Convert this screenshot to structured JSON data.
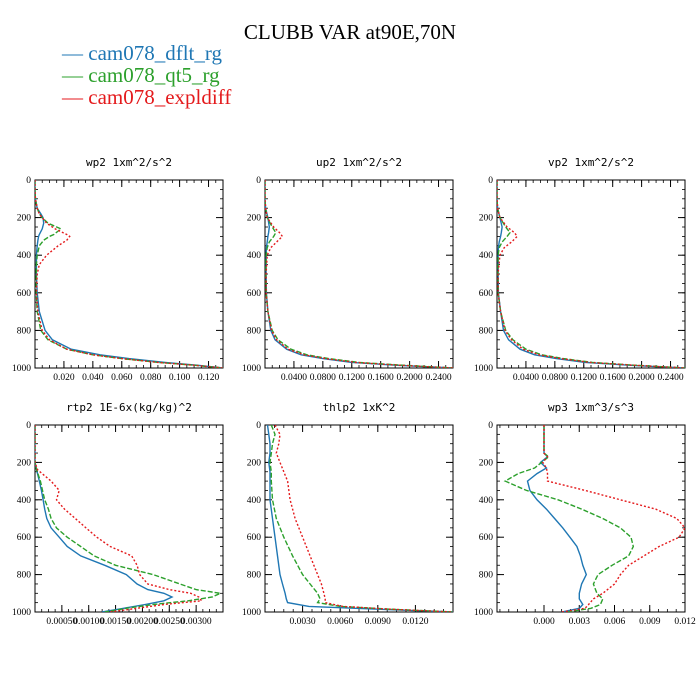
{
  "title": "CLUBB VAR at90E,70N",
  "legend": [
    {
      "name": "cam078_dflt_rg",
      "color": "#1f77b4"
    },
    {
      "name": "cam078_qt5_rg",
      "color": "#2ca02c"
    },
    {
      "name": "cam078_expldiff",
      "color": "#e41a1c"
    }
  ],
  "chart_data": [
    {
      "type": "line",
      "title": "wp2   1xm^2/s^2",
      "xlim": [
        0,
        0.13
      ],
      "ylim": [
        1000,
        0
      ],
      "xticks": [
        0.02,
        0.04,
        0.06,
        0.08,
        0.1,
        0.12
      ],
      "xticklabels": [
        "0.020",
        "0.040",
        "0.060",
        "0.080",
        "0.100",
        "0.120"
      ],
      "yticks": [
        0,
        200,
        400,
        600,
        800,
        1000
      ],
      "y": [
        0,
        50,
        100,
        150,
        180,
        200,
        230,
        260,
        290,
        300,
        320,
        350,
        400,
        450,
        500,
        600,
        700,
        800,
        850,
        900,
        930,
        950,
        970,
        985,
        1000
      ],
      "series": [
        {
          "name": "cam078_dflt_rg",
          "values": [
            0,
            0,
            0.0003,
            0.0015,
            0.004,
            0.0055,
            0.006,
            0.005,
            0.003,
            0.0025,
            0.002,
            0.0015,
            0.001,
            0.001,
            0.001,
            0.0015,
            0.003,
            0.007,
            0.012,
            0.025,
            0.045,
            0.065,
            0.09,
            0.112,
            0.13
          ]
        },
        {
          "name": "cam078_qt5_rg",
          "values": [
            0,
            0,
            0.0003,
            0.0015,
            0.003,
            0.005,
            0.009,
            0.018,
            0.013,
            0.01,
            0.006,
            0.003,
            0.0015,
            0.001,
            0.0008,
            0.0008,
            0.0015,
            0.004,
            0.009,
            0.022,
            0.04,
            0.06,
            0.085,
            0.11,
            0.13
          ]
        },
        {
          "name": "cam078_expldiff",
          "values": [
            0,
            0,
            0.0003,
            0.0015,
            0.003,
            0.005,
            0.008,
            0.014,
            0.022,
            0.024,
            0.022,
            0.016,
            0.008,
            0.003,
            0.0015,
            0.001,
            0.002,
            0.005,
            0.01,
            0.022,
            0.04,
            0.06,
            0.085,
            0.11,
            0.13
          ]
        }
      ]
    },
    {
      "type": "line",
      "title": "up2   1xm^2/s^2",
      "xlim": [
        0,
        0.26
      ],
      "ylim": [
        1000,
        0
      ],
      "xticks": [
        0.04,
        0.08,
        0.12,
        0.16,
        0.2,
        0.24
      ],
      "xticklabels": [
        "0.0400",
        "0.0800",
        "0.1200",
        "0.1600",
        "0.2000",
        "0.2400"
      ],
      "yticks": [
        0,
        200,
        400,
        600,
        800,
        1000
      ],
      "y": [
        0,
        100,
        150,
        200,
        250,
        280,
        300,
        330,
        360,
        400,
        500,
        600,
        700,
        800,
        850,
        900,
        930,
        950,
        970,
        985,
        1000
      ],
      "series": [
        {
          "name": "cam078_dflt_rg",
          "values": [
            0,
            0,
            0.0008,
            0.004,
            0.006,
            0.005,
            0.004,
            0.003,
            0.002,
            0.0015,
            0.0015,
            0.002,
            0.004,
            0.008,
            0.014,
            0.03,
            0.05,
            0.08,
            0.12,
            0.18,
            0.26
          ]
        },
        {
          "name": "cam078_qt5_rg",
          "values": [
            0,
            0,
            0.0008,
            0.003,
            0.01,
            0.015,
            0.012,
            0.006,
            0.003,
            0.0015,
            0.0012,
            0.0015,
            0.004,
            0.01,
            0.018,
            0.036,
            0.058,
            0.088,
            0.13,
            0.19,
            0.26
          ]
        },
        {
          "name": "cam078_expldiff",
          "values": [
            0,
            0,
            0.0008,
            0.003,
            0.012,
            0.02,
            0.024,
            0.016,
            0.008,
            0.003,
            0.0015,
            0.0015,
            0.004,
            0.009,
            0.016,
            0.032,
            0.054,
            0.084,
            0.125,
            0.185,
            0.26
          ]
        }
      ]
    },
    {
      "type": "line",
      "title": "vp2   1xm^2/s^2",
      "xlim": [
        0,
        0.26
      ],
      "ylim": [
        1000,
        0
      ],
      "xticks": [
        0.04,
        0.08,
        0.12,
        0.16,
        0.2,
        0.24
      ],
      "xticklabels": [
        "0.0400",
        "0.0800",
        "0.1200",
        "0.1600",
        "0.2000",
        "0.2400"
      ],
      "yticks": [
        0,
        200,
        400,
        600,
        800,
        1000
      ],
      "y": [
        0,
        100,
        150,
        200,
        250,
        280,
        300,
        330,
        360,
        400,
        500,
        600,
        700,
        800,
        850,
        900,
        930,
        950,
        970,
        985,
        1000
      ],
      "series": [
        {
          "name": "cam078_dflt_rg",
          "values": [
            0,
            0,
            0.0008,
            0.004,
            0.007,
            0.006,
            0.005,
            0.003,
            0.002,
            0.0015,
            0.0015,
            0.002,
            0.005,
            0.009,
            0.016,
            0.032,
            0.052,
            0.082,
            0.122,
            0.182,
            0.26
          ]
        },
        {
          "name": "cam078_qt5_rg",
          "values": [
            0,
            0,
            0.0008,
            0.004,
            0.012,
            0.018,
            0.014,
            0.007,
            0.003,
            0.0015,
            0.0012,
            0.0015,
            0.005,
            0.012,
            0.022,
            0.04,
            0.062,
            0.092,
            0.132,
            0.19,
            0.26
          ]
        },
        {
          "name": "cam078_expldiff",
          "values": [
            0,
            0,
            0.0008,
            0.004,
            0.014,
            0.024,
            0.028,
            0.02,
            0.01,
            0.004,
            0.0015,
            0.0015,
            0.005,
            0.011,
            0.02,
            0.036,
            0.058,
            0.088,
            0.128,
            0.188,
            0.26
          ]
        }
      ]
    },
    {
      "type": "line",
      "title": "rtp2   1E-6x(kg/kg)^2",
      "xlim": [
        0,
        0.0035
      ],
      "ylim": [
        1000,
        0
      ],
      "xticks": [
        0.0005,
        0.001,
        0.0015,
        0.002,
        0.0025,
        0.003
      ],
      "xticklabels": [
        "0.00050",
        "0.00100",
        "0.00150",
        "0.00200",
        "0.00250",
        "0.00300"
      ],
      "yticks": [
        0,
        200,
        400,
        600,
        800,
        1000
      ],
      "y": [
        0,
        100,
        200,
        240,
        300,
        350,
        400,
        450,
        500,
        550,
        600,
        650,
        700,
        750,
        800,
        850,
        880,
        900,
        920,
        940,
        960,
        980,
        1000
      ],
      "series": [
        {
          "name": "cam078_dflt_rg",
          "values": [
            0,
            0,
            0,
            3e-05,
            8e-05,
            0.00012,
            0.00015,
            0.00018,
            0.00022,
            0.0003,
            0.00045,
            0.0006,
            0.00085,
            0.0013,
            0.0017,
            0.0019,
            0.0021,
            0.0024,
            0.00255,
            0.0024,
            0.00205,
            0.00165,
            0.00125
          ]
        },
        {
          "name": "cam078_qt5_rg",
          "values": [
            0,
            0,
            0,
            3e-05,
            0.0001,
            0.00014,
            0.00018,
            0.00025,
            0.0003,
            0.0004,
            0.0006,
            0.00085,
            0.0011,
            0.0015,
            0.0022,
            0.0027,
            0.003,
            0.00345,
            0.0033,
            0.00285,
            0.0022,
            0.0017,
            0.0013
          ]
        },
        {
          "name": "cam078_expldiff",
          "values": [
            0,
            0,
            0,
            5e-05,
            0.0003,
            0.00045,
            0.0004,
            0.00055,
            0.00075,
            0.00095,
            0.00115,
            0.0014,
            0.0018,
            0.0019,
            0.00195,
            0.0021,
            0.0025,
            0.0029,
            0.00305,
            0.0031,
            0.0024,
            0.0019,
            0.0014
          ]
        }
      ]
    },
    {
      "type": "line",
      "title": "thlp2   1xK^2",
      "xlim": [
        0,
        0.015
      ],
      "ylim": [
        1000,
        0
      ],
      "xticks": [
        0.003,
        0.006,
        0.009,
        0.012
      ],
      "xticklabels": [
        "0.0030",
        "0.0060",
        "0.0090",
        "0.0120"
      ],
      "yticks": [
        0,
        200,
        400,
        600,
        800,
        1000
      ],
      "y": [
        0,
        50,
        100,
        150,
        200,
        250,
        300,
        400,
        500,
        600,
        700,
        800,
        850,
        900,
        930,
        950,
        970,
        985,
        1000
      ],
      "series": [
        {
          "name": "cam078_dflt_rg",
          "values": [
            0.0002,
            0.0003,
            0.0004,
            0.0004,
            0.0003,
            0.0004,
            0.0004,
            0.0004,
            0.0006,
            0.0008,
            0.001,
            0.0012,
            0.0014,
            0.0016,
            0.0017,
            0.0018,
            0.0035,
            0.009,
            0.015
          ]
        },
        {
          "name": "cam078_qt5_rg",
          "values": [
            0.0005,
            0.0008,
            0.0006,
            0.0005,
            0.0004,
            0.0005,
            0.0005,
            0.0006,
            0.0009,
            0.0015,
            0.0022,
            0.003,
            0.0036,
            0.0042,
            0.0044,
            0.0042,
            0.006,
            0.01,
            0.015
          ]
        },
        {
          "name": "cam078_expldiff",
          "values": [
            0.0008,
            0.0012,
            0.0011,
            0.0009,
            0.0012,
            0.0015,
            0.0018,
            0.002,
            0.0024,
            0.003,
            0.0036,
            0.0042,
            0.0045,
            0.0047,
            0.0048,
            0.0048,
            0.0062,
            0.01,
            0.015
          ]
        }
      ]
    },
    {
      "type": "line",
      "title": "wp3   1xm^3/s^3",
      "xlim": [
        -0.004,
        0.012
      ],
      "ylim": [
        1000,
        0
      ],
      "xticks": [
        0,
        0.003,
        0.006,
        0.009,
        0.012
      ],
      "xticklabels": [
        "0.000",
        "0.003",
        "0.006",
        "0.009",
        "0.012"
      ],
      "yticks": [
        0,
        200,
        400,
        600,
        800,
        1000
      ],
      "y": [
        0,
        150,
        170,
        200,
        230,
        260,
        300,
        350,
        400,
        450,
        500,
        550,
        600,
        650,
        700,
        750,
        800,
        850,
        900,
        930,
        960,
        980,
        1000
      ],
      "series": [
        {
          "name": "cam078_dflt_rg",
          "values": [
            0,
            0,
            0.0003,
            -0.0003,
            0.0002,
            -0.0006,
            -0.0014,
            -0.0012,
            -0.0006,
            0.0002,
            0.0009,
            0.0016,
            0.0022,
            0.0028,
            0.0031,
            0.0033,
            0.0036,
            0.0032,
            0.003,
            0.003,
            0.0033,
            0.003,
            0.0015
          ]
        },
        {
          "name": "cam078_qt5_rg",
          "values": [
            0,
            0,
            0.0004,
            -0.0002,
            -0.0008,
            -0.0022,
            -0.0033,
            -0.0015,
            0.0012,
            0.0032,
            0.005,
            0.0065,
            0.0074,
            0.0076,
            0.0072,
            0.0058,
            0.0046,
            0.0042,
            0.0045,
            0.005,
            0.0048,
            0.004,
            0.002
          ]
        },
        {
          "name": "cam078_expldiff",
          "values": [
            0,
            0,
            0.0003,
            -0.0001,
            0.0002,
            0.0003,
            0.0003,
            0.0035,
            0.0065,
            0.0095,
            0.0113,
            0.012,
            0.0115,
            0.0098,
            0.0085,
            0.0072,
            0.0065,
            0.006,
            0.005,
            0.0042,
            0.0038,
            0.0035,
            0.0015
          ]
        }
      ]
    }
  ]
}
